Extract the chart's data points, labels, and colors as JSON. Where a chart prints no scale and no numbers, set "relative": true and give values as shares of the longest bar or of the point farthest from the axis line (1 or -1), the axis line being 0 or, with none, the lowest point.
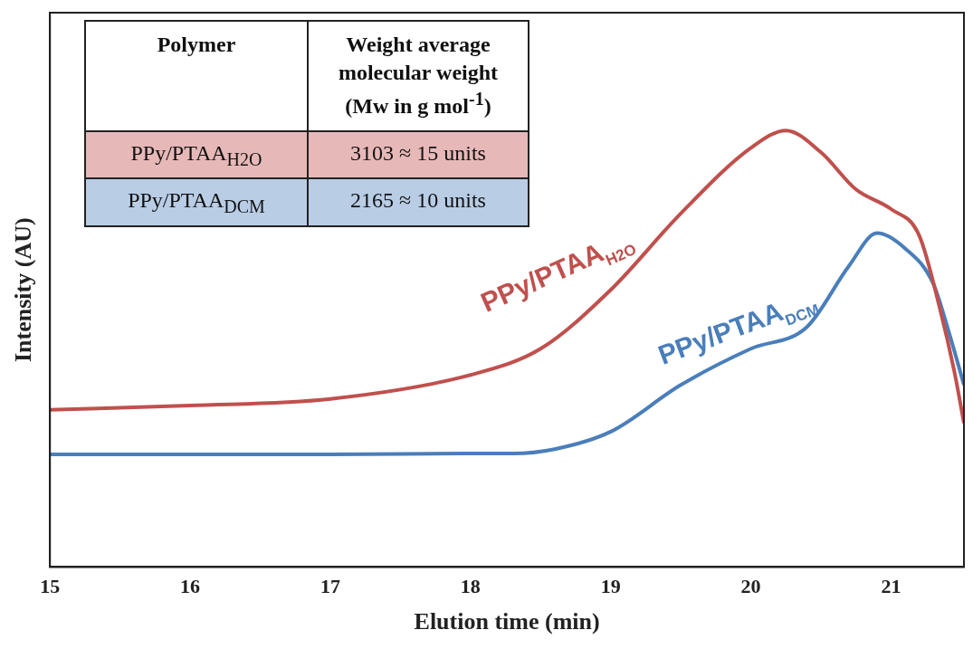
{
  "chart_data": {
    "type": "line",
    "xlabel": "Elution time (min)",
    "ylabel": "Intensity (AU)",
    "relative": true,
    "xlim": [
      15,
      21.52
    ],
    "xticks": [
      15,
      16,
      17,
      18,
      19,
      20,
      21
    ],
    "grid": false,
    "legend": false,
    "marker": "none",
    "line_style": "solid",
    "series": [
      {
        "name": "PPy/PTAA$_{H2O}$",
        "color": "#c0504d",
        "x": [
          15,
          16,
          17,
          18,
          18.5,
          19,
          19.5,
          20,
          20.25,
          20.5,
          20.75,
          21,
          21.2,
          21.35,
          21.45,
          21.52
        ],
        "values": [
          0.36,
          0.37,
          0.385,
          0.44,
          0.5,
          0.635,
          0.81,
          0.96,
          1,
          0.95,
          0.865,
          0.82,
          0.76,
          0.59,
          0.45,
          0.33
        ]
      },
      {
        "name": "PPy/PTAA$_{DCM}$",
        "color": "#4a7ebb",
        "x": [
          15,
          16,
          17,
          18,
          18.3,
          18.6,
          19,
          19.5,
          20,
          20.4,
          20.7,
          20.9,
          21.1,
          21.3,
          21.42,
          21.52
        ],
        "values": [
          0.258,
          0.258,
          0.258,
          0.26,
          0.26,
          0.27,
          0.31,
          0.417,
          0.5,
          0.55,
          0.69,
          0.765,
          0.73,
          0.65,
          0.53,
          0.417
        ]
      }
    ],
    "annotations": [
      "Polymer",
      "Weight average molecular weight (Mw in g mol$^{-1}$)",
      "PPy/PTAA$_{H2O}$",
      "3103 ≈ 15 units",
      "PPy/PTAA$_{DCM}$",
      "2165 ≈ 10 units"
    ]
  }
}
